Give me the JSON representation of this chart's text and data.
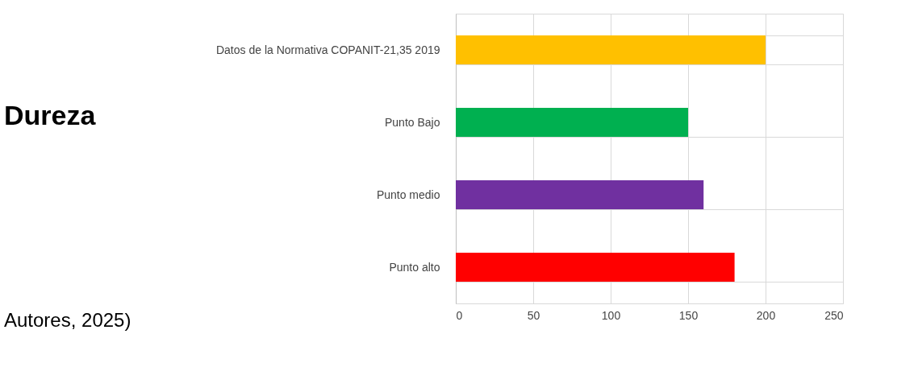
{
  "chart_data": {
    "type": "bar",
    "orientation": "horizontal",
    "title": "Dureza",
    "categories": [
      "Datos de la Normativa COPANIT-21,35 2019",
      "Punto Bajo",
      "Punto medio",
      "Punto alto"
    ],
    "values": [
      200,
      150,
      160,
      180
    ],
    "colors": [
      "#ffc000",
      "#00b050",
      "#7030a0",
      "#ff0000"
    ],
    "xlim": [
      0,
      250
    ],
    "xticks": [
      0,
      50,
      100,
      150,
      200,
      250
    ],
    "grid": true,
    "legend": false,
    "annotations": [
      "Autores, 2025)"
    ]
  }
}
